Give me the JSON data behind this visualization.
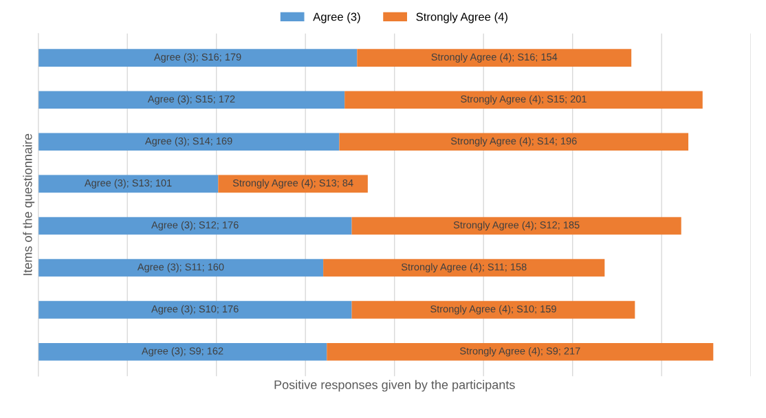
{
  "chart_data": {
    "type": "bar",
    "orientation": "horizontal",
    "stacked": true,
    "xlabel": "Positive responses given by the participants",
    "ylabel": "Items of the questionnaire",
    "categories": [
      null,
      null,
      null,
      null,
      null,
      null,
      null,
      null
    ],
    "series": [
      {
        "name": "Agree (3)",
        "color": "#5b9bd5",
        "values": [
          179,
          172,
          169,
          101,
          176,
          160,
          176,
          162
        ],
        "value_labels": [
          "Agree (3); S16; 179",
          "Agree (3); S15; 172",
          "Agree (3); S14; 169",
          "Agree (3); S13; 101",
          "Agree (3); S12; 176",
          "Agree (3); S11; 160",
          "Agree (3); S10; 176",
          "Agree (3); S9; 162"
        ]
      },
      {
        "name": "Strongly Agree (4)",
        "color": "#ed7d31",
        "values": [
          154,
          201,
          196,
          84,
          185,
          158,
          159,
          217
        ],
        "value_labels": [
          "Strongly Agree (4); S16; 154",
          "Strongly Agree (4); S15; 201",
          "Strongly Agree (4); S14; 196",
          "Strongly Agree (4); S13; 84",
          "Strongly Agree (4); S12; 185",
          "Strongly Agree (4); S11; 158",
          "Strongly Agree (4); S10; 159",
          "Strongly Agree (4); S9; 217"
        ]
      }
    ],
    "xlim": [
      0,
      400
    ],
    "xticks": [
      {
        "value": 0,
        "label": null
      },
      {
        "value": 50,
        "label": null
      },
      {
        "value": 100,
        "label": null
      },
      {
        "value": 150,
        "label": null
      },
      {
        "value": 200,
        "label": null
      },
      {
        "value": 250,
        "label": null
      },
      {
        "value": 300,
        "label": null
      },
      {
        "value": 350,
        "label": null
      },
      {
        "value": 400,
        "label": null
      }
    ],
    "tick_labels": false,
    "grid": "x",
    "legend": "top"
  }
}
